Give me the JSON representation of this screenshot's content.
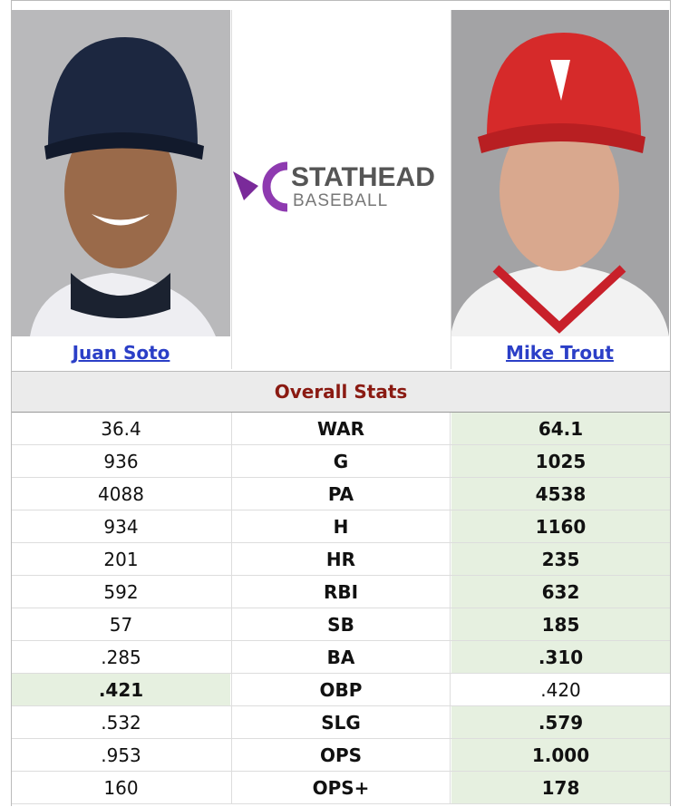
{
  "players": [
    {
      "name": "Juan Soto"
    },
    {
      "name": "Mike Trout"
    }
  ],
  "logo": {
    "brand": "STATHEAD",
    "sport": "BASEBALL"
  },
  "section_title": "Overall Stats",
  "rows": [
    {
      "left": "36.4",
      "stat": "WAR",
      "right": "64.1",
      "leader": "right"
    },
    {
      "left": "936",
      "stat": "G",
      "right": "1025",
      "leader": "right"
    },
    {
      "left": "4088",
      "stat": "PA",
      "right": "4538",
      "leader": "right"
    },
    {
      "left": "934",
      "stat": "H",
      "right": "1160",
      "leader": "right"
    },
    {
      "left": "201",
      "stat": "HR",
      "right": "235",
      "leader": "right"
    },
    {
      "left": "592",
      "stat": "RBI",
      "right": "632",
      "leader": "right"
    },
    {
      "left": "57",
      "stat": "SB",
      "right": "185",
      "leader": "right"
    },
    {
      "left": ".285",
      "stat": "BA",
      "right": ".310",
      "leader": "right"
    },
    {
      "left": ".421",
      "stat": "OBP",
      "right": ".420",
      "leader": "left"
    },
    {
      "left": ".532",
      "stat": "SLG",
      "right": ".579",
      "leader": "right"
    },
    {
      "left": ".953",
      "stat": "OPS",
      "right": "1.000",
      "leader": "right"
    },
    {
      "left": "160",
      "stat": "OPS+",
      "right": "178",
      "leader": "right"
    }
  ]
}
